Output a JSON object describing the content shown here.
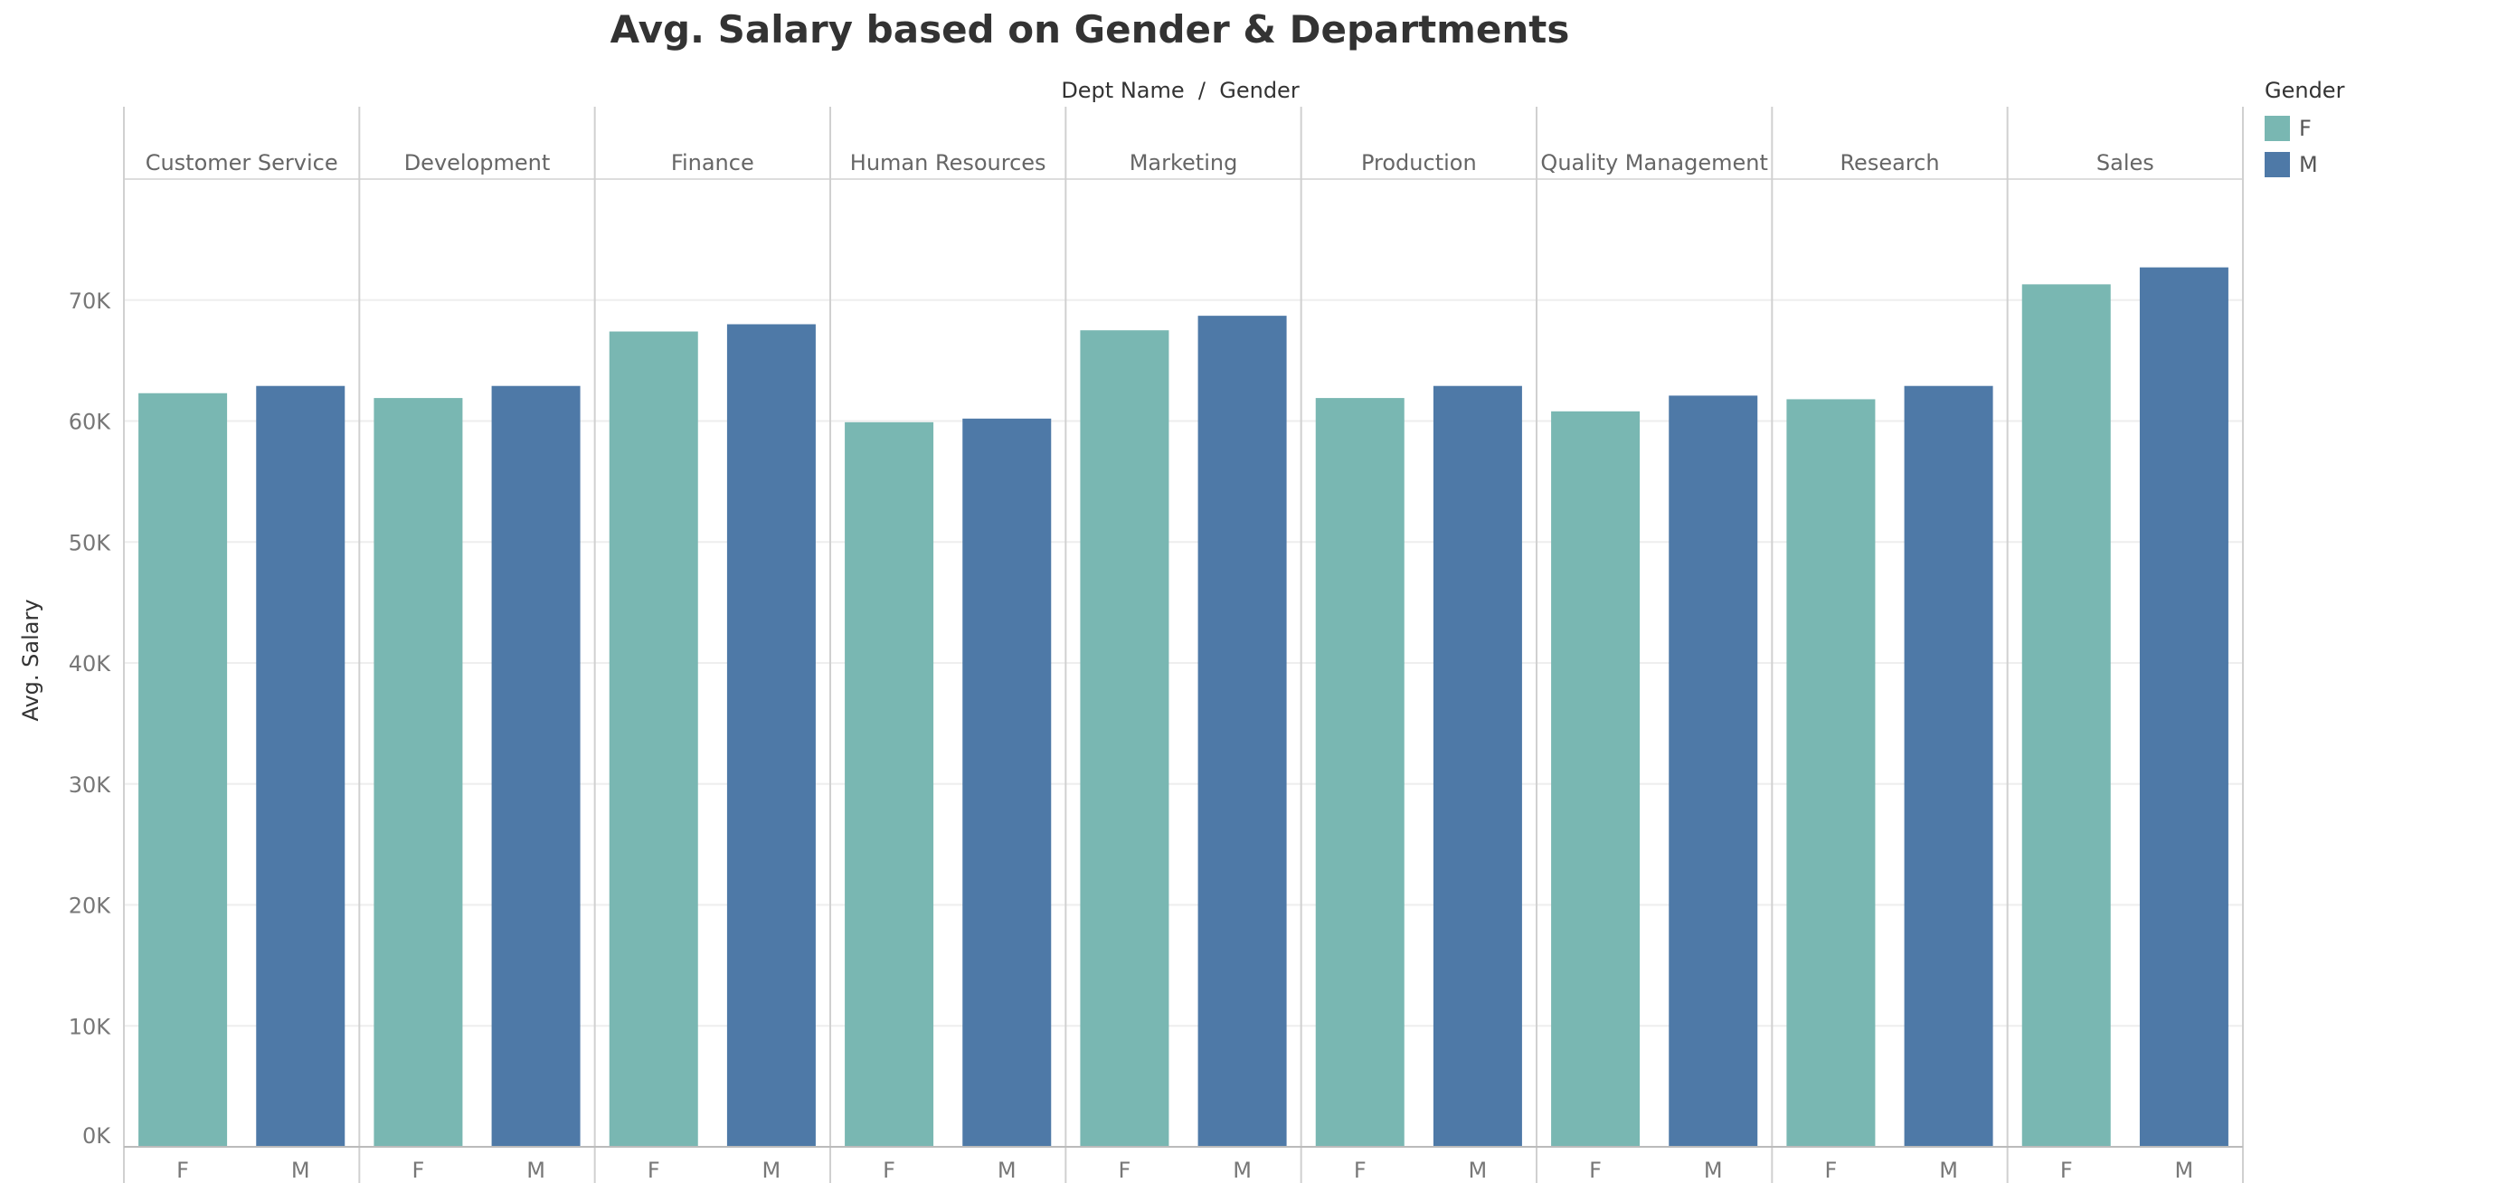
{
  "title": "Avg. Salary based on Gender & Departments",
  "legend": {
    "title": "Gender",
    "items": [
      {
        "label": "F",
        "color": "#79b7b2"
      },
      {
        "label": "M",
        "color": "#4e79a7"
      }
    ]
  },
  "chart_data": {
    "type": "bar",
    "title": "Avg. Salary based on Gender & Departments",
    "header_label": "Dept Name  /  Gender",
    "ylabel": "Avg. Salary",
    "ylim": [
      0,
      80000
    ],
    "yticks": [
      0,
      10000,
      20000,
      30000,
      40000,
      50000,
      60000,
      70000
    ],
    "ytick_labels": [
      "0K",
      "10K",
      "20K",
      "30K",
      "40K",
      "50K",
      "60K",
      "70K"
    ],
    "grid": true,
    "legend_position": "top-right",
    "sub_categories": [
      "F",
      "M"
    ],
    "colors": {
      "F": "#79b7b2",
      "M": "#4e79a7"
    },
    "departments": [
      {
        "name": "Customer Service",
        "values": [
          62300,
          62900
        ]
      },
      {
        "name": "Development",
        "values": [
          61900,
          62900
        ]
      },
      {
        "name": "Finance",
        "values": [
          67400,
          68000
        ]
      },
      {
        "name": "Human Resources",
        "values": [
          59900,
          60200
        ]
      },
      {
        "name": "Marketing",
        "values": [
          67500,
          68700
        ]
      },
      {
        "name": "Production",
        "values": [
          61900,
          62900
        ]
      },
      {
        "name": "Quality Management",
        "values": [
          60800,
          62100
        ]
      },
      {
        "name": "Research",
        "values": [
          61800,
          62900
        ]
      },
      {
        "name": "Sales",
        "values": [
          71300,
          72700
        ]
      }
    ]
  }
}
